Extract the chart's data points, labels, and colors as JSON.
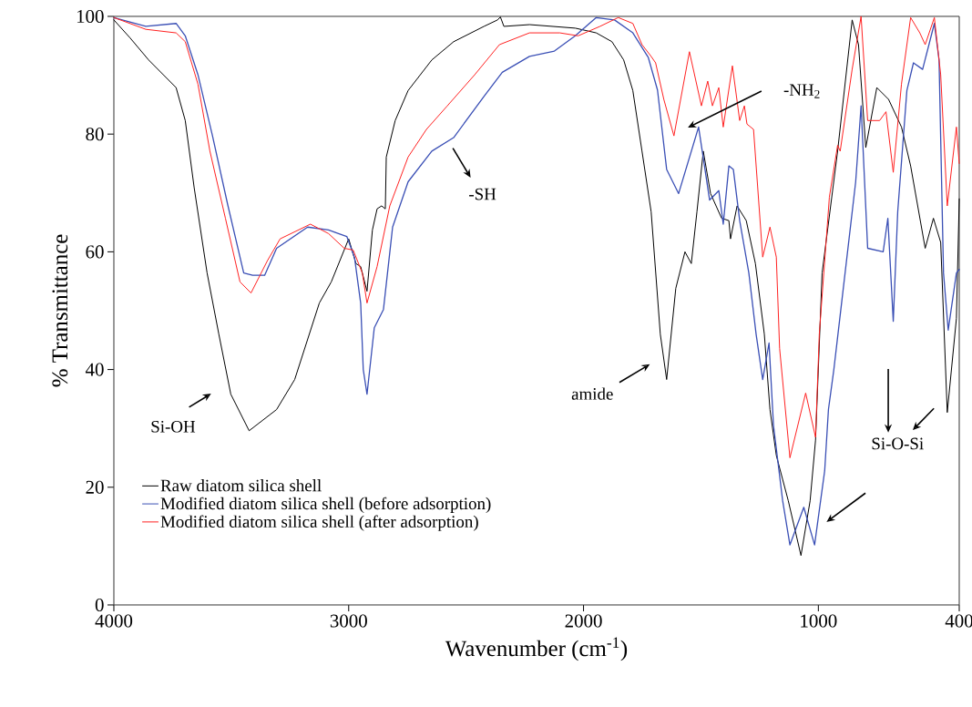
{
  "chart_data": {
    "type": "line",
    "xlabel": "Wavenumber (cm$^{-1}$)",
    "ylabel": "% Transmittance",
    "xlim": [
      4000,
      400
    ],
    "ylim": [
      0,
      100
    ],
    "xticks": [
      4000,
      3000,
      2000,
      1000,
      400
    ],
    "yticks": [
      0,
      20,
      40,
      60,
      80,
      100
    ],
    "grid": false,
    "legend": "bottom left",
    "marker": "none",
    "line_style": "solid",
    "series": [
      {
        "name": "Raw diatom silica shell",
        "color": "#000000",
        "x": [
          4000,
          3930,
          3852,
          3735,
          3696,
          3658,
          3603,
          3553,
          3502,
          3424,
          3307,
          3230,
          3125,
          3074,
          3000,
          2969,
          2949,
          2922,
          2899,
          2879,
          2860,
          2844,
          2840,
          2802,
          2747,
          2646,
          2553,
          2424,
          2366,
          2354,
          2339,
          2230,
          2035,
          1946,
          1879,
          1829,
          1790,
          1751,
          1712,
          1673,
          1646,
          1607,
          1568,
          1541,
          1517,
          1490,
          1459,
          1412,
          1381,
          1374,
          1346,
          1307,
          1268,
          1230,
          1206,
          1179,
          1128,
          1074,
          1035,
          1012,
          984,
          918,
          856,
          829,
          798,
          751,
          701,
          646,
          607,
          545,
          510,
          479,
          451,
          412,
          400
        ],
        "values": [
          99.4,
          96.3,
          92.6,
          87.9,
          82.3,
          70.9,
          56.4,
          46,
          35.8,
          29.6,
          33.2,
          38.3,
          51.3,
          54.9,
          62.2,
          58,
          57.5,
          53.3,
          63.7,
          67.3,
          67.8,
          67.3,
          76.1,
          82.3,
          87.4,
          92.6,
          95.7,
          98.3,
          99.4,
          99.9,
          98.3,
          98.6,
          98,
          97.2,
          95.7,
          92.6,
          87.4,
          77.1,
          66.8,
          46,
          38.3,
          53.8,
          60,
          58,
          66.8,
          77.1,
          69.9,
          65.7,
          65.3,
          62.2,
          67.8,
          65.3,
          58,
          46,
          33.2,
          25.4,
          17.7,
          8.4,
          17.7,
          28,
          56.4,
          77.1,
          99.4,
          95.2,
          77.7,
          87.9,
          85.9,
          81.2,
          74.6,
          60.6,
          65.7,
          61.6,
          32.7,
          48.7,
          69
        ]
      },
      {
        "name": "Modified diatom silica shell (before adsorption)",
        "color": "#3a4fb5",
        "x": [
          4000,
          3864,
          3735,
          3696,
          3642,
          3580,
          3514,
          3447,
          3409,
          3358,
          3307,
          3175,
          3086,
          3008,
          2975,
          2949,
          2938,
          2922,
          2891,
          2852,
          2813,
          2747,
          2646,
          2553,
          2424,
          2346,
          2230,
          2124,
          2035,
          1946,
          1868,
          1790,
          1724,
          1685,
          1646,
          1595,
          1510,
          1463,
          1424,
          1405,
          1381,
          1362,
          1335,
          1296,
          1265,
          1237,
          1210,
          1191,
          1152,
          1121,
          1062,
          1016,
          973,
          957,
          934,
          899,
          841,
          818,
          790,
          724,
          704,
          681,
          662,
          623,
          595,
          556,
          506,
          486,
          467,
          447,
          412,
          400
        ],
        "values": [
          99.8,
          98.3,
          98.8,
          96.7,
          90.1,
          79.7,
          67.8,
          56.4,
          56,
          56,
          60.6,
          64.2,
          63.7,
          62.6,
          59,
          51.3,
          40,
          35.8,
          47.1,
          50.2,
          64.2,
          71.9,
          77.1,
          79.4,
          86.4,
          90.5,
          93.2,
          94.1,
          96.7,
          99.8,
          99.4,
          97.2,
          93,
          87.5,
          74,
          69.9,
          81.2,
          68.8,
          70.4,
          64.7,
          74.6,
          74,
          65.3,
          56.4,
          46,
          38.3,
          44.5,
          30.5,
          17.7,
          10.2,
          16.6,
          10.2,
          22.8,
          33.2,
          40,
          52,
          71.9,
          84.8,
          60.6,
          60,
          65.7,
          48.2,
          66.8,
          87.4,
          92.1,
          91,
          98.8,
          92.6,
          56.4,
          46.7,
          56.4,
          57
        ]
      },
      {
        "name": "Modified diatom silica shell (after adsorption)",
        "color": "#ff2020",
        "x": [
          4000,
          3864,
          3735,
          3696,
          3642,
          3591,
          3525,
          3463,
          3416,
          3346,
          3292,
          3163,
          3086,
          3019,
          2981,
          2942,
          2922,
          2879,
          2825,
          2747,
          2669,
          2580,
          2463,
          2358,
          2230,
          2101,
          2023,
          1930,
          1852,
          1790,
          1751,
          1712,
          1693,
          1658,
          1615,
          1549,
          1498,
          1471,
          1451,
          1424,
          1405,
          1366,
          1335,
          1315,
          1304,
          1276,
          1237,
          1206,
          1179,
          1165,
          1121,
          1054,
          1012,
          996,
          953,
          918,
          907,
          856,
          818,
          790,
          739,
          712,
          681,
          646,
          607,
          568,
          545,
          506,
          479,
          451,
          412,
          400
        ],
        "values": [
          99.8,
          97.8,
          97.2,
          95.7,
          88.5,
          77.1,
          65.7,
          54.9,
          53,
          58.5,
          62.2,
          64.7,
          63.1,
          60.6,
          60.3,
          56.4,
          51.3,
          57.5,
          67.8,
          76.1,
          80.8,
          84.8,
          90.1,
          95.2,
          97.2,
          97.2,
          96.7,
          98.3,
          99.8,
          98.8,
          95.2,
          93.2,
          92.1,
          85.9,
          79.7,
          94,
          84.8,
          89,
          84.8,
          87.9,
          81.2,
          91.6,
          82.3,
          84.8,
          81.7,
          80.8,
          59.1,
          64.2,
          59.1,
          43.6,
          25,
          36,
          28.5,
          46,
          69.3,
          78.1,
          77.1,
          91,
          100,
          82.3,
          82.3,
          83.8,
          73.5,
          88.5,
          99.8,
          97.2,
          95.2,
          99.8,
          90.1,
          67.8,
          81.2,
          75
        ]
      }
    ],
    "annotations": [
      "Si-OH",
      "-SH",
      "-NH$_{2}$",
      "amide",
      "Si-O-Si"
    ]
  }
}
